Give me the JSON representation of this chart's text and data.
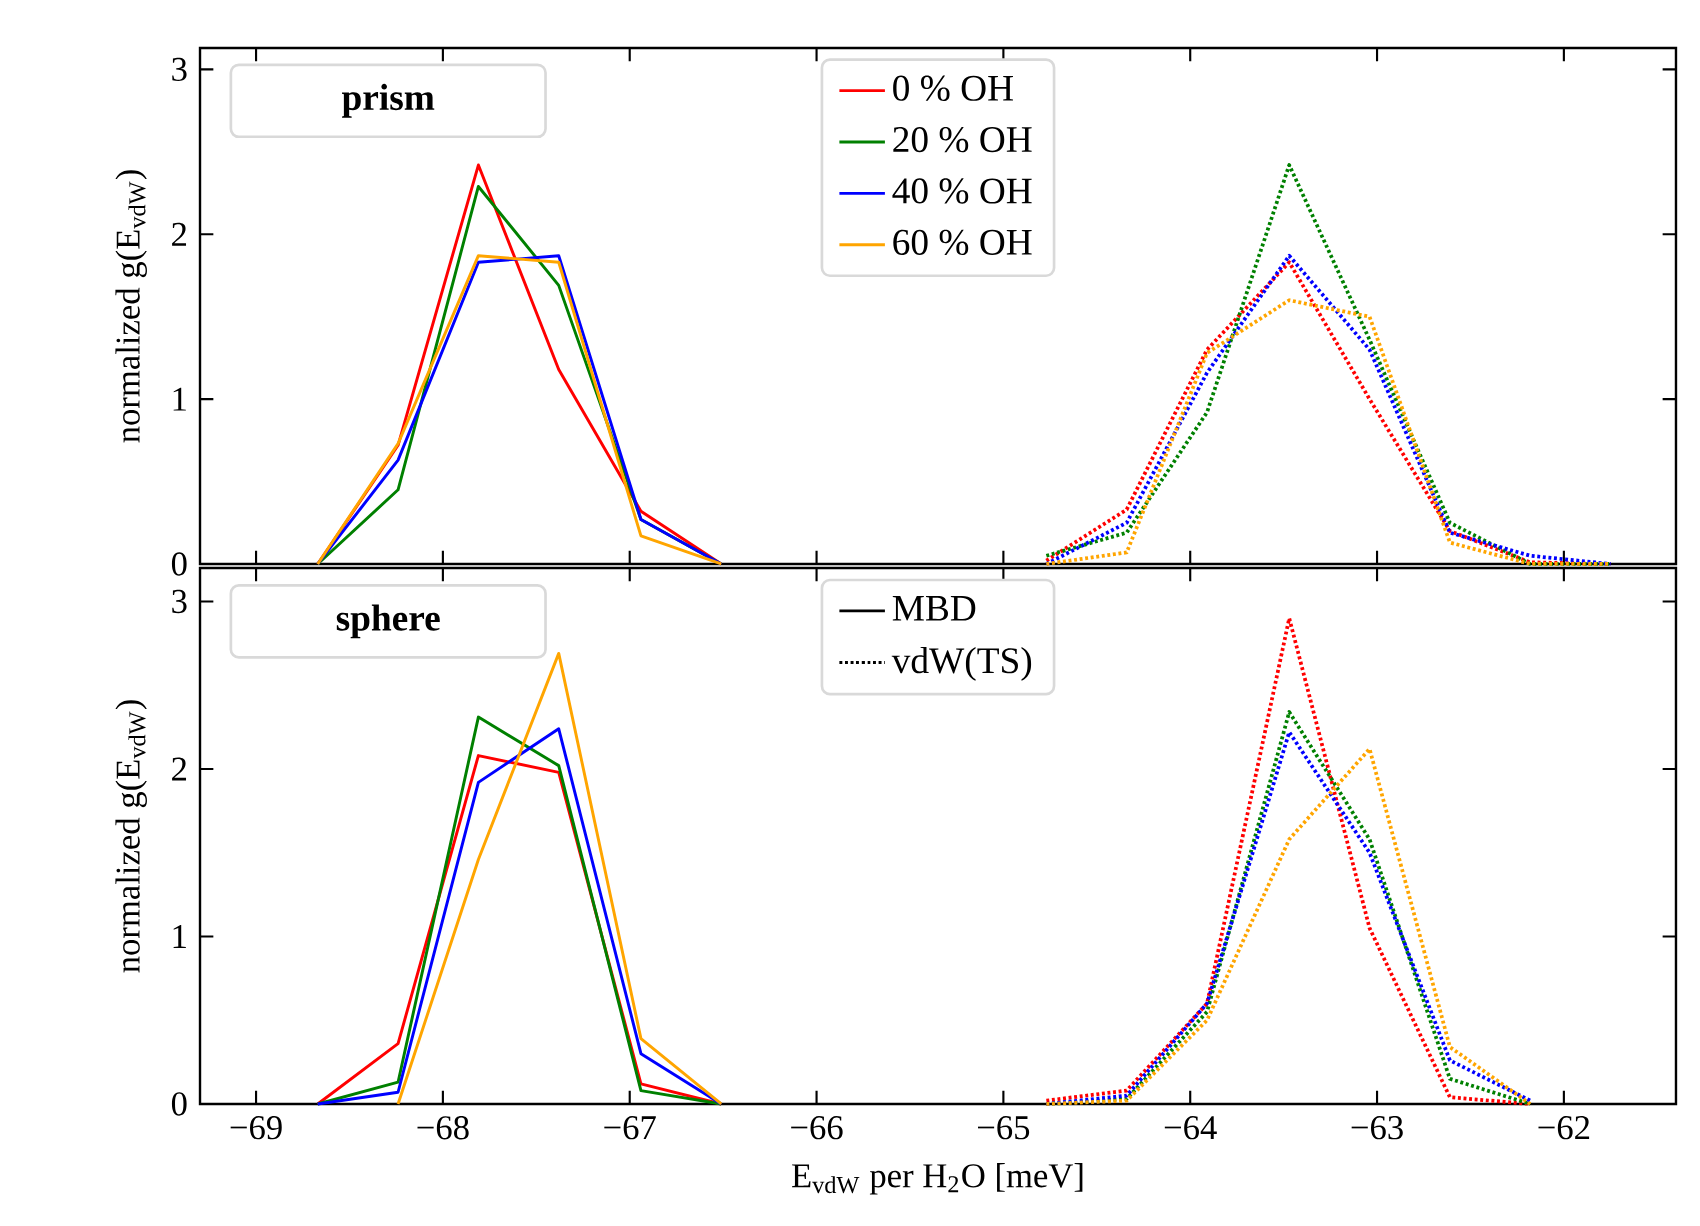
{
  "chart_data": [
    {
      "type": "line",
      "ylabel": "normalized g(E$_{vdW}$)",
      "xlim": [
        -69.3,
        -61.4
      ],
      "ylim": [
        0,
        3.13
      ],
      "xticks": [
        {
          "value": -69,
          "label": null
        },
        {
          "value": -68,
          "label": null
        },
        {
          "value": -67,
          "label": null
        },
        {
          "value": -66,
          "label": null
        },
        {
          "value": -65,
          "label": null
        },
        {
          "value": -64,
          "label": null
        },
        {
          "value": -63,
          "label": null
        },
        {
          "value": -62,
          "label": null
        }
      ],
      "yticks": [
        0,
        1,
        2,
        3
      ],
      "tick_labels": "y",
      "legend": "top",
      "annotations": [
        "prism"
      ],
      "series": [
        {
          "name": "0 % OH",
          "color": "#ff0000",
          "line_style": "solid",
          "x": [
            -68.67,
            -68.24,
            -67.81,
            -67.38,
            -66.94,
            -66.51
          ],
          "values": [
            0,
            0.72,
            2.42,
            1.18,
            0.32,
            0
          ]
        },
        {
          "name": "20 % OH",
          "color": "#008000",
          "line_style": "solid",
          "x": [
            -68.67,
            -68.24,
            -67.81,
            -67.38,
            -66.94,
            -66.51
          ],
          "values": [
            0,
            0.45,
            2.29,
            1.69,
            0.27,
            0
          ]
        },
        {
          "name": "40 % OH",
          "color": "#0000ff",
          "line_style": "solid",
          "x": [
            -68.67,
            -68.24,
            -67.81,
            -67.38,
            -66.94,
            -66.51
          ],
          "values": [
            0,
            0.63,
            1.83,
            1.87,
            0.27,
            0
          ]
        },
        {
          "name": "60 % OH",
          "color": "#ffa500",
          "line_style": "solid",
          "x": [
            -68.67,
            -68.24,
            -67.81,
            -67.38,
            -66.94,
            -66.51
          ],
          "values": [
            0,
            0.73,
            1.87,
            1.83,
            0.17,
            0
          ]
        },
        {
          "color": "#ff0000",
          "line_style": "dotted",
          "x": [
            -64.77,
            -64.34,
            -63.91,
            -63.47,
            -63.04,
            -62.61,
            -62.18,
            -61.75
          ],
          "values": [
            0.02,
            0.33,
            1.3,
            1.83,
            1.0,
            0.2,
            0.01,
            0
          ]
        },
        {
          "color": "#008000",
          "line_style": "dotted",
          "x": [
            -64.77,
            -64.34,
            -63.91,
            -63.47,
            -63.04,
            -62.61,
            -62.18,
            -61.75
          ],
          "values": [
            0.05,
            0.19,
            0.92,
            2.42,
            1.36,
            0.25,
            0,
            0
          ]
        },
        {
          "color": "#0000ff",
          "line_style": "dotted",
          "x": [
            -64.77,
            -64.34,
            -63.91,
            -63.47,
            -63.04,
            -62.61,
            -62.18,
            -61.75
          ],
          "values": [
            0,
            0.25,
            1.16,
            1.87,
            1.3,
            0.19,
            0.05,
            0
          ]
        },
        {
          "color": "#ffa500",
          "line_style": "dotted",
          "x": [
            -64.77,
            -64.34,
            -63.91,
            -63.47,
            -63.04,
            -62.61,
            -62.18,
            -61.75
          ],
          "values": [
            0,
            0.07,
            1.28,
            1.6,
            1.5,
            0.13,
            0,
            0
          ]
        }
      ]
    },
    {
      "type": "line",
      "ylabel": "normalized g(E$_{vdW}$)",
      "xlabel": "E$_{vdW}$ per H$_{2}$O  [meV]",
      "xlim": [
        -69.3,
        -61.4
      ],
      "ylim": [
        0,
        3.2
      ],
      "xticks": [
        {
          "value": -69,
          "label": "−69"
        },
        {
          "value": -68,
          "label": "−68"
        },
        {
          "value": -67,
          "label": "−67"
        },
        {
          "value": -66,
          "label": "−66"
        },
        {
          "value": -65,
          "label": "−65"
        },
        {
          "value": -64,
          "label": "−64"
        },
        {
          "value": -63,
          "label": "−63"
        },
        {
          "value": -62,
          "label": "−62"
        }
      ],
      "yticks": [
        0,
        1,
        2,
        3
      ],
      "legend": "top",
      "annotations": [
        "sphere",
        "MBD",
        "vdW(TS)"
      ],
      "series": [
        {
          "color": "#ff0000",
          "line_style": "solid",
          "x": [
            -68.67,
            -68.24,
            -67.81,
            -67.38,
            -66.94,
            -66.51
          ],
          "values": [
            0,
            0.36,
            2.08,
            1.98,
            0.12,
            0
          ]
        },
        {
          "color": "#008000",
          "line_style": "solid",
          "x": [
            -68.67,
            -68.24,
            -67.81,
            -67.38,
            -66.94,
            -66.51
          ],
          "values": [
            0,
            0.13,
            2.31,
            2.02,
            0.08,
            0
          ]
        },
        {
          "color": "#0000ff",
          "line_style": "solid",
          "x": [
            -68.67,
            -68.24,
            -67.81,
            -67.38,
            -66.94,
            -66.51
          ],
          "values": [
            0,
            0.07,
            1.92,
            2.24,
            0.3,
            0
          ]
        },
        {
          "color": "#ffa500",
          "line_style": "solid",
          "x": [
            -68.24,
            -67.81,
            -67.38,
            -66.94,
            -66.51
          ],
          "values": [
            0,
            1.46,
            2.69,
            0.39,
            0
          ]
        },
        {
          "color": "#ff0000",
          "line_style": "dotted",
          "x": [
            -64.77,
            -64.34,
            -63.91,
            -63.47,
            -63.04,
            -62.61,
            -62.18
          ],
          "values": [
            0.02,
            0.08,
            0.6,
            2.9,
            1.05,
            0.04,
            0
          ]
        },
        {
          "color": "#008000",
          "line_style": "dotted",
          "x": [
            -64.77,
            -64.34,
            -63.91,
            -63.47,
            -63.04,
            -62.61,
            -62.18
          ],
          "values": [
            0,
            0.03,
            0.55,
            2.34,
            1.58,
            0.15,
            0
          ]
        },
        {
          "color": "#0000ff",
          "line_style": "dotted",
          "x": [
            -64.77,
            -64.34,
            -63.91,
            -63.47,
            -63.04,
            -62.61,
            -62.18
          ],
          "values": [
            0,
            0.05,
            0.6,
            2.22,
            1.5,
            0.26,
            0.02
          ]
        },
        {
          "color": "#ffa500",
          "line_style": "dotted",
          "x": [
            -64.77,
            -64.34,
            -63.91,
            -63.47,
            -63.04,
            -62.61,
            -62.18
          ],
          "values": [
            0,
            0.02,
            0.5,
            1.58,
            2.12,
            0.34,
            0
          ]
        }
      ]
    }
  ]
}
